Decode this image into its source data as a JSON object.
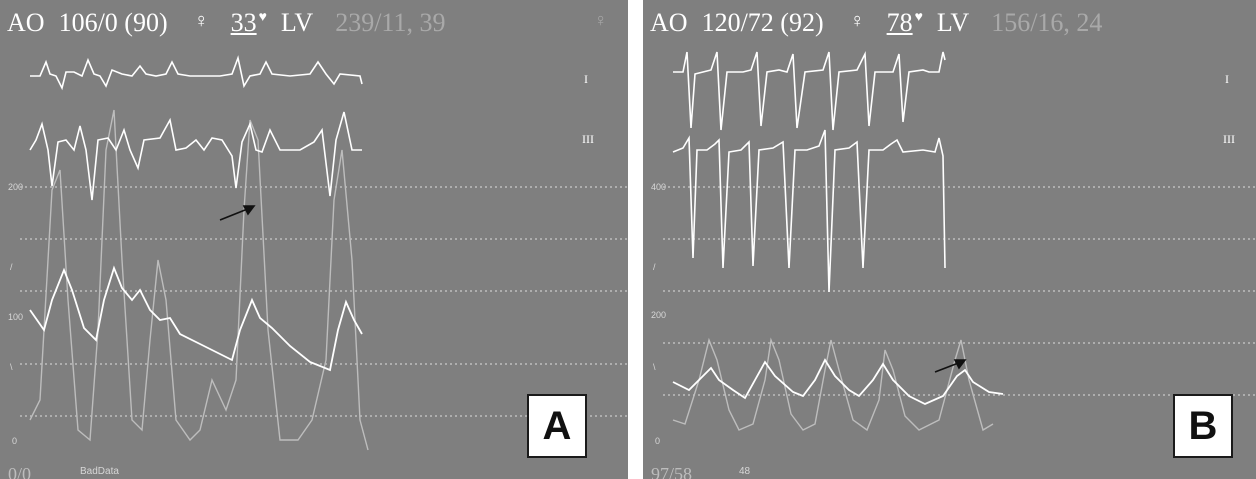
{
  "panels": [
    {
      "label": "A",
      "header": {
        "ao_label": "AO",
        "ao_value": "106/0 (90)",
        "hr_value": "33",
        "lv_label": "LV",
        "lv_value": "239/11, 39"
      },
      "lead_labels": [
        "I",
        "III"
      ],
      "scale_ticks": [
        "200",
        "/",
        "100",
        "\\",
        "0"
      ],
      "footer_left": "0/0",
      "footer_note": "BadData"
    },
    {
      "label": "B",
      "header": {
        "ao_label": "AO",
        "ao_value": "120/72 (92)",
        "hr_value": "78",
        "lv_label": "LV",
        "lv_value": "156/16, 24"
      },
      "lead_labels": [
        "I",
        "III"
      ],
      "scale_ticks": [
        "400",
        "/",
        "200",
        "\\",
        "0"
      ],
      "footer_left": "97/58",
      "footer_note": "48"
    }
  ],
  "colors": {
    "panel_bg": "#7f7f7f",
    "trace": "#ffffff",
    "faint_trace": "#b9b9b9",
    "grid": "#d9d9d9"
  }
}
